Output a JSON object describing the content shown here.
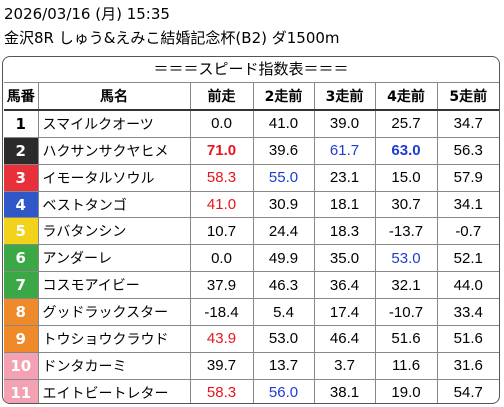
{
  "header": {
    "datetime": "2026/03/16 (月) 15:35",
    "race": "金沢8R しゅう&えみこ結婚記念杯(B2) ダ1500m"
  },
  "table": {
    "subtitle": "＝＝＝スピード指数表＝＝＝",
    "columns": [
      "馬番",
      "馬名",
      "前走",
      "2走前",
      "3走前",
      "4走前",
      "5走前"
    ],
    "rows": [
      {
        "num": "1",
        "name": "スマイルクオーツ",
        "v": [
          "0.0",
          "41.0",
          "39.0",
          "25.7",
          "34.7"
        ],
        "c": [
          "",
          "",
          "",
          "",
          ""
        ],
        "b": [
          false,
          false,
          false,
          false,
          false
        ],
        "bg": "#ffffff",
        "fg": "#000000"
      },
      {
        "num": "2",
        "name": "ハクサンサクヤヒメ",
        "v": [
          "71.0",
          "39.6",
          "61.7",
          "63.0",
          "56.3"
        ],
        "c": [
          "#e8141e",
          "",
          "#1e3cd2",
          "#1e3cd2",
          ""
        ],
        "b": [
          true,
          false,
          false,
          true,
          false
        ],
        "bg": "#2b2b2b",
        "fg": "#ffffff"
      },
      {
        "num": "3",
        "name": "イモータルソウル",
        "v": [
          "58.3",
          "55.0",
          "23.1",
          "15.0",
          "57.9"
        ],
        "c": [
          "#e8141e",
          "#1e3cd2",
          "",
          "",
          ""
        ],
        "b": [
          false,
          false,
          false,
          false,
          false
        ],
        "bg": "#e8303a",
        "fg": "#ffffff"
      },
      {
        "num": "4",
        "name": "ベストタンゴ",
        "v": [
          "41.0",
          "30.9",
          "18.1",
          "30.7",
          "34.1"
        ],
        "c": [
          "#e8141e",
          "",
          "",
          "",
          ""
        ],
        "b": [
          false,
          false,
          false,
          false,
          false
        ],
        "bg": "#2f57c8",
        "fg": "#ffffff"
      },
      {
        "num": "5",
        "name": "ラバタンシン",
        "v": [
          "10.7",
          "24.4",
          "18.3",
          "-13.7",
          "-0.7"
        ],
        "c": [
          "",
          "",
          "",
          "",
          ""
        ],
        "b": [
          false,
          false,
          false,
          false,
          false
        ],
        "bg": "#f2d21a",
        "fg": "#ffffff"
      },
      {
        "num": "6",
        "name": "アンダーレ",
        "v": [
          "0.0",
          "49.9",
          "35.0",
          "53.0",
          "52.1"
        ],
        "c": [
          "",
          "",
          "",
          "#1e3cd2",
          ""
        ],
        "b": [
          false,
          false,
          false,
          false,
          false
        ],
        "bg": "#3aa845",
        "fg": "#ffffff"
      },
      {
        "num": "7",
        "name": "コスモアイビー",
        "v": [
          "37.9",
          "46.3",
          "36.4",
          "32.1",
          "44.0"
        ],
        "c": [
          "",
          "",
          "",
          "",
          ""
        ],
        "b": [
          false,
          false,
          false,
          false,
          false
        ],
        "bg": "#3aa845",
        "fg": "#ffffff"
      },
      {
        "num": "8",
        "name": "グッドラックスター",
        "v": [
          "-18.4",
          "5.4",
          "17.4",
          "-10.7",
          "33.4"
        ],
        "c": [
          "",
          "",
          "",
          "",
          ""
        ],
        "b": [
          false,
          false,
          false,
          false,
          false
        ],
        "bg": "#ef8a2a",
        "fg": "#ffffff"
      },
      {
        "num": "9",
        "name": "トウショウクラウド",
        "v": [
          "43.9",
          "53.0",
          "46.4",
          "51.6",
          "51.6"
        ],
        "c": [
          "#e8141e",
          "",
          "",
          "",
          ""
        ],
        "b": [
          false,
          false,
          false,
          false,
          false
        ],
        "bg": "#ef8a2a",
        "fg": "#ffffff"
      },
      {
        "num": "10",
        "name": "ドンタカーミ",
        "v": [
          "39.7",
          "13.7",
          "3.7",
          "11.6",
          "31.6"
        ],
        "c": [
          "",
          "",
          "",
          "",
          ""
        ],
        "b": [
          false,
          false,
          false,
          false,
          false
        ],
        "bg": "#f4a1b4",
        "fg": "#ffffff"
      },
      {
        "num": "11",
        "name": "エイトビートレター",
        "v": [
          "58.3",
          "56.0",
          "38.1",
          "19.0",
          "54.7"
        ],
        "c": [
          "#e8141e",
          "#1e3cd2",
          "",
          "",
          ""
        ],
        "b": [
          false,
          false,
          false,
          false,
          false
        ],
        "bg": "#f4a1b4",
        "fg": "#ffffff"
      }
    ]
  }
}
